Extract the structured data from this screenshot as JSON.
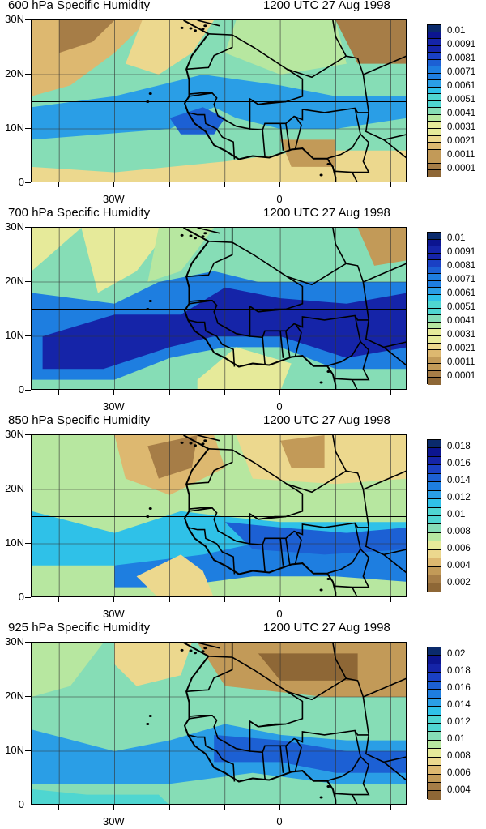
{
  "palette": [
    "#8e6736",
    "#a67d47",
    "#c29a58",
    "#ddb870",
    "#ecd88e",
    "#e6ea9a",
    "#b7e7a0",
    "#86ddb6",
    "#4fd6d1",
    "#2fc1e8",
    "#2a9ee6",
    "#1e7ee0",
    "#1c60d4",
    "#1a40c4",
    "#1524a8",
    "#0c1590",
    "#0a2a6c"
  ],
  "lat_labels": [
    "30N",
    "20N",
    "10N",
    "0"
  ],
  "lon_labels": [
    "30W",
    "0"
  ],
  "panels": [
    {
      "title": "600 hPa Specific Humidity",
      "time": "1200 UTC 27 Aug 1998",
      "colorbar_labels": [
        "0.01",
        "0.0091",
        "0.0081",
        "0.0071",
        "0.0061",
        "0.0051",
        "0.0041",
        "0.0031",
        "0.0021",
        "0.0011",
        "0.0001"
      ],
      "level_count": 22
    },
    {
      "title": "700 hPa Specific Humidity",
      "time": "1200 UTC 27 Aug 1998",
      "colorbar_labels": [
        "0.01",
        "0.0091",
        "0.0081",
        "0.0071",
        "0.0061",
        "0.0051",
        "0.0041",
        "0.0031",
        "0.0021",
        "0.0011",
        "0.0001"
      ],
      "level_count": 22
    },
    {
      "title": "850 hPa Specific Humidity",
      "time": "1200 UTC 27 Aug 1998",
      "colorbar_labels": [
        "0.018",
        "0.016",
        "0.014",
        "0.012",
        "0.01",
        "0.008",
        "0.006",
        "0.004",
        "0.002"
      ],
      "level_count": 18
    },
    {
      "title": "925 hPa Specific Humidity",
      "time": "1200 UTC 27 Aug 1998",
      "colorbar_labels": [
        "0.02",
        "0.018",
        "0.016",
        "0.014",
        "0.012",
        "0.01",
        "0.008",
        "0.006",
        "0.004"
      ],
      "level_count": 18
    }
  ]
}
